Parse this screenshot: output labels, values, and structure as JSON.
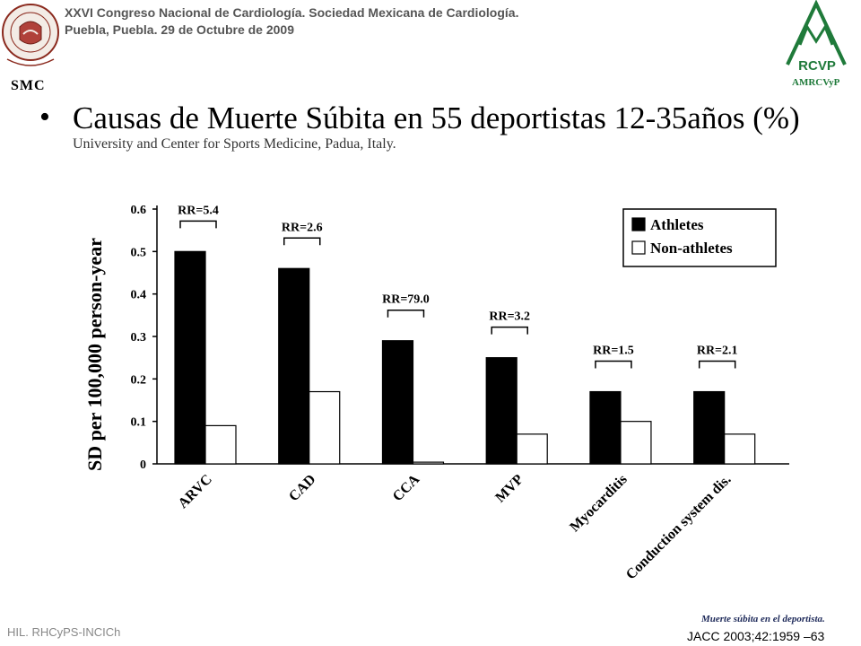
{
  "header": {
    "line1": "XXVI Congreso Nacional de Cardiología.  Sociedad Mexicana de Cardiología.",
    "line2": "Puebla, Puebla. 29 de Octubre de 2009"
  },
  "logos": {
    "smc": {
      "label": "SMC",
      "seal_ring_text": "SOCIEDAD MEXICANA DE CARDIOLOGIA",
      "motto": "PLUS EST EN VOI"
    },
    "rcvp": {
      "mark_text": "RCVP",
      "label": "AMRCVyP"
    }
  },
  "slide": {
    "bullet": "•",
    "title": "Causas de Muerte Súbita en 55 deportistas 12-35años (%)",
    "subtitle": "University and Center for Sports Medicine, Padua, Italy."
  },
  "chart_data": {
    "type": "bar",
    "ylabel": "SD per 100,000 person-year",
    "ylim": [
      0,
      0.6
    ],
    "yticks": [
      "0",
      "0.1",
      "0.2",
      "0.3",
      "0.4",
      "0.5",
      "0.6"
    ],
    "categories": [
      "ARVC",
      "CAD",
      "CCA",
      "MVP",
      "Myocarditis",
      "Conduction system dis."
    ],
    "series": [
      {
        "name": "Athletes",
        "values": [
          0.5,
          0.46,
          0.29,
          0.25,
          0.17,
          0.17
        ],
        "color": "#000000"
      },
      {
        "name": "Non-athletes",
        "values": [
          0.09,
          0.17,
          0.004,
          0.07,
          0.1,
          0.07
        ],
        "color": "#ffffff"
      }
    ],
    "annotations": [
      "RR=5.4",
      "RR=2.6",
      "RR=79.0",
      "RR=3.2",
      "RR=1.5",
      "RR=2.1"
    ],
    "legend_position": "top-right",
    "grid": false
  },
  "footer": {
    "left": "HIL. RHCyPS-INCICh",
    "right_italic": "Muerte súbita en el deportista.",
    "reference": "JACC 2003;42:1959 –63"
  }
}
